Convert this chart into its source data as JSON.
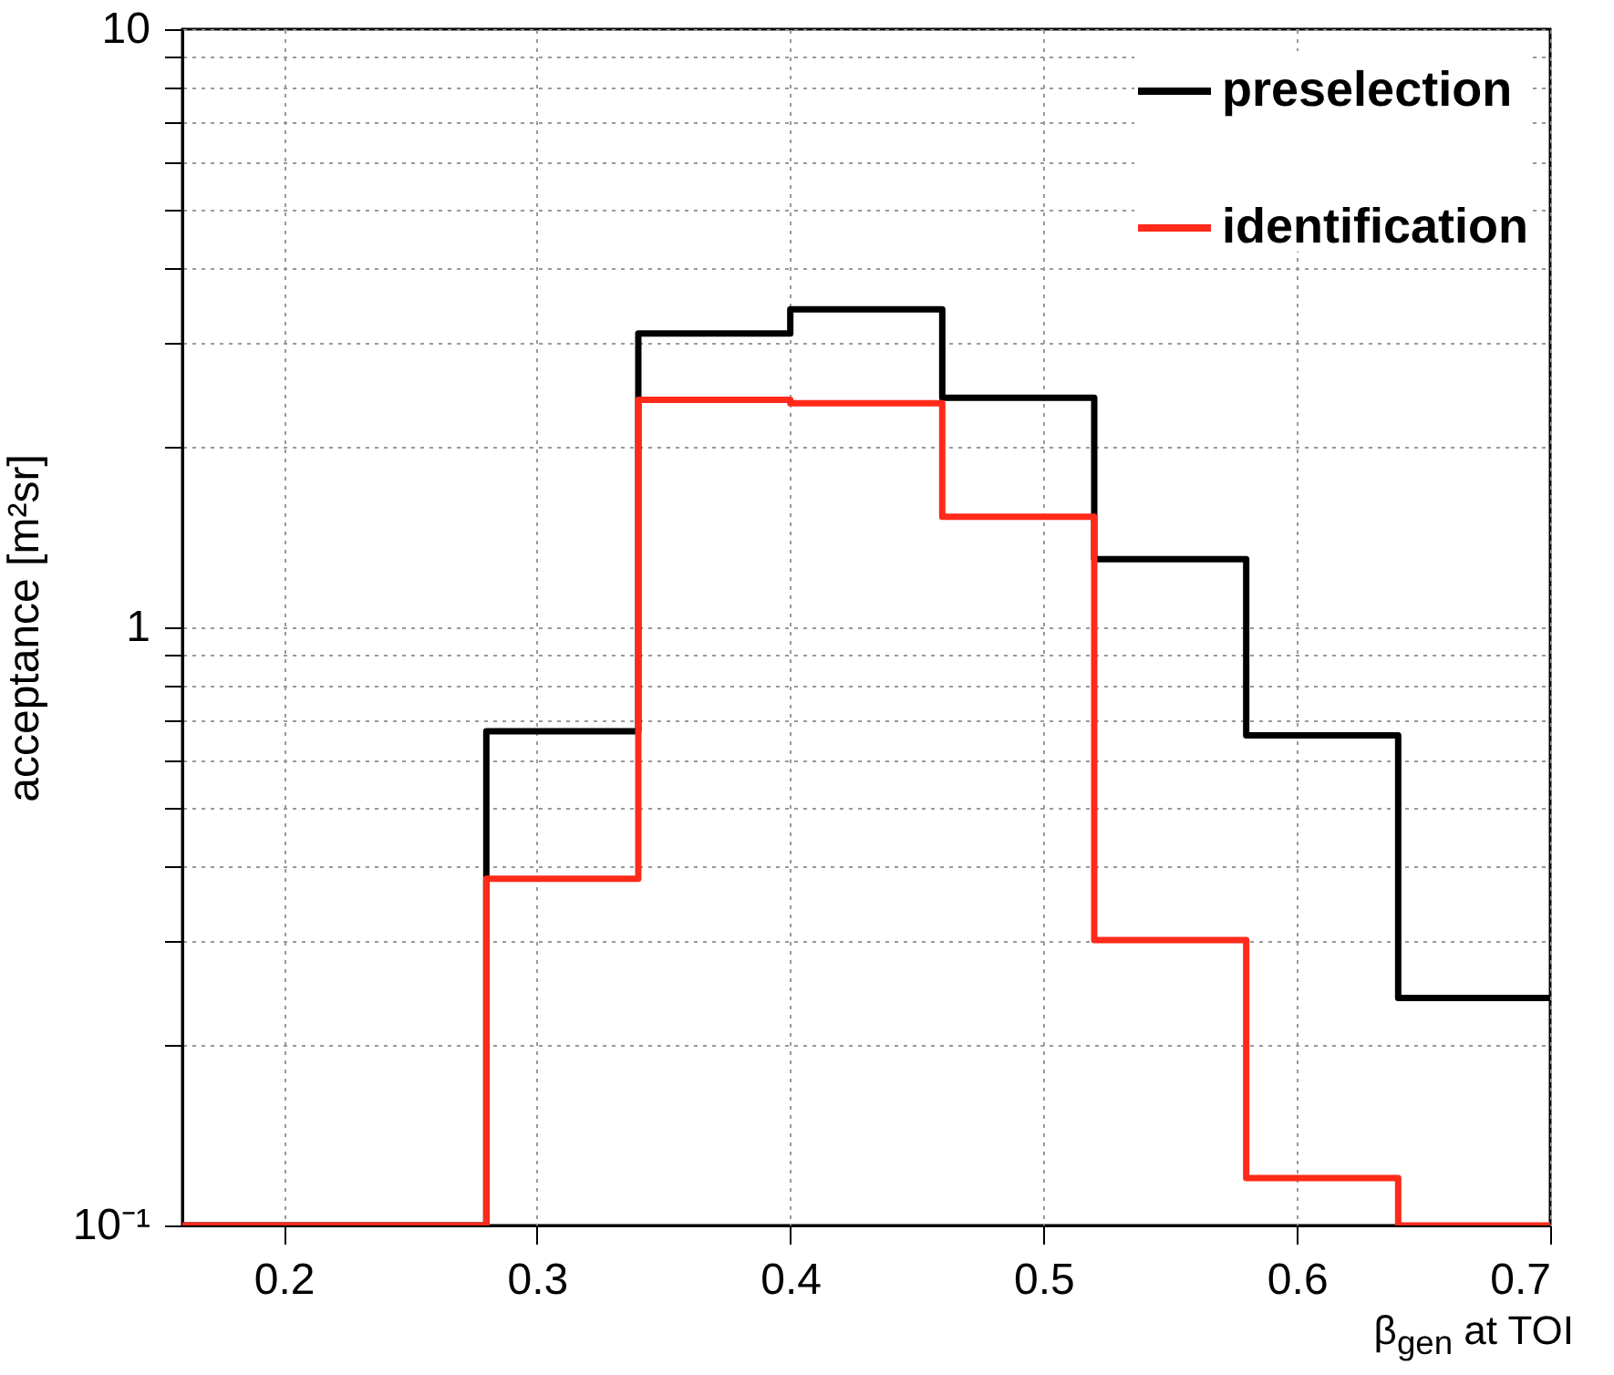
{
  "chart_data": {
    "type": "histogram",
    "xlabel": "β$_{gen}$ at TOI",
    "ylabel": "acceptance [m²sr]",
    "bins": [
      0.16,
      0.22,
      0.28,
      0.34,
      0.4,
      0.46,
      0.52,
      0.58,
      0.64,
      0.7
    ],
    "series": [
      {
        "name": "preselection",
        "color": "#000000",
        "values": [
          0.1,
          0.1,
          0.67,
          3.1,
          3.4,
          2.42,
          1.3,
          0.66,
          0.24
        ]
      },
      {
        "name": "identification",
        "color": "#ff2a1a",
        "values": [
          0.1,
          0.1,
          0.38,
          2.4,
          2.37,
          1.53,
          0.3,
          0.12,
          0.1
        ]
      }
    ],
    "log": "y",
    "xlim": [
      0.16,
      0.7
    ],
    "xticks": [
      0.2,
      0.3,
      0.4,
      0.5,
      0.6,
      0.7
    ],
    "ylim": [
      0.1,
      10
    ],
    "yticks": [
      {
        "value": 0.1,
        "label": "10⁻¹"
      },
      {
        "value": 0.2,
        "label": null
      },
      {
        "value": 0.3,
        "label": null
      },
      {
        "value": 0.4,
        "label": null
      },
      {
        "value": 0.5,
        "label": null
      },
      {
        "value": 0.6,
        "label": null
      },
      {
        "value": 0.7,
        "label": null
      },
      {
        "value": 0.8,
        "label": null
      },
      {
        "value": 0.9,
        "label": null
      },
      1,
      {
        "value": 2,
        "label": null
      },
      {
        "value": 3,
        "label": null
      },
      {
        "value": 4,
        "label": null
      },
      {
        "value": 5,
        "label": null
      },
      {
        "value": 6,
        "label": null
      },
      {
        "value": 7,
        "label": null
      },
      {
        "value": 8,
        "label": null
      },
      {
        "value": 9,
        "label": null
      },
      10
    ],
    "grid": true,
    "legend": "top right"
  }
}
